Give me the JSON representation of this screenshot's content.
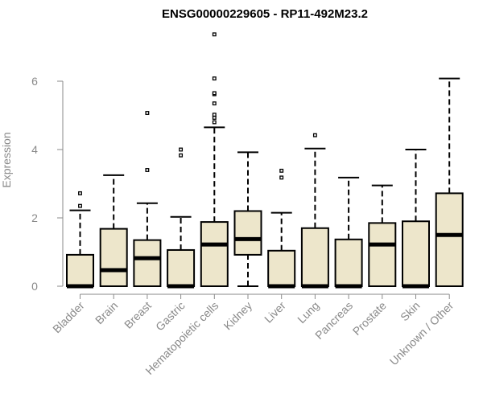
{
  "chart_data": {
    "type": "boxplot",
    "title": "ENSG00000229605 - RP11-492M23.2",
    "xlabel": "",
    "ylabel": "Expression",
    "ylim": [
      0,
      7.5
    ],
    "yticks": [
      0,
      2,
      4,
      6
    ],
    "grid": false,
    "colors": {
      "box_fill": "#ede6cb",
      "stroke": "#000000",
      "axis_text": "#8a8a8a"
    },
    "categories": [
      "Bladder",
      "Brain",
      "Breast",
      "Gastric",
      "Hematopoietic cells",
      "Kidney",
      "Liver",
      "Lung",
      "Pancreas",
      "Prostate",
      "Skin",
      "Unknown / Other"
    ],
    "boxes": [
      {
        "min": 0,
        "q1": 0,
        "median": 0,
        "q3": 0.92,
        "max": 2.22,
        "outliers": [
          2.35,
          2.72
        ]
      },
      {
        "min": 0,
        "q1": 0,
        "median": 0.47,
        "q3": 1.68,
        "max": 3.25,
        "outliers": []
      },
      {
        "min": 0,
        "q1": 0,
        "median": 0.82,
        "q3": 1.35,
        "max": 2.43,
        "outliers": [
          3.4,
          5.07
        ]
      },
      {
        "min": 0,
        "q1": 0,
        "median": 0,
        "q3": 1.06,
        "max": 2.03,
        "outliers": [
          3.83,
          4.0
        ]
      },
      {
        "min": 0,
        "q1": 0,
        "median": 1.22,
        "q3": 1.88,
        "max": 4.65,
        "outliers": [
          4.8,
          4.93,
          5.02,
          5.35,
          5.62,
          5.65,
          6.08,
          7.37
        ]
      },
      {
        "min": 0,
        "q1": 0.92,
        "median": 1.38,
        "q3": 2.2,
        "max": 3.92,
        "outliers": []
      },
      {
        "min": 0,
        "q1": 0,
        "median": 0,
        "q3": 1.04,
        "max": 2.15,
        "outliers": [
          3.18,
          3.38
        ]
      },
      {
        "min": 0,
        "q1": 0,
        "median": 0,
        "q3": 1.7,
        "max": 4.03,
        "outliers": [
          4.42
        ]
      },
      {
        "min": 0,
        "q1": 0,
        "median": 0,
        "q3": 1.37,
        "max": 3.18,
        "outliers": []
      },
      {
        "min": 0,
        "q1": 0,
        "median": 1.22,
        "q3": 1.85,
        "max": 2.95,
        "outliers": []
      },
      {
        "min": 0,
        "q1": 0,
        "median": 0,
        "q3": 1.9,
        "max": 4.0,
        "outliers": []
      },
      {
        "min": 0,
        "q1": 0,
        "median": 1.5,
        "q3": 2.72,
        "max": 6.08,
        "outliers": []
      }
    ]
  }
}
